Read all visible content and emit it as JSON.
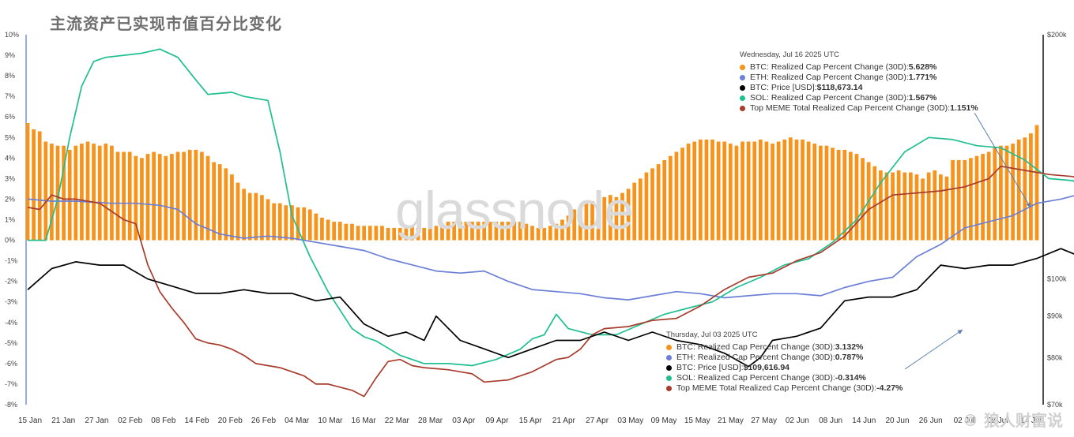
{
  "title": "主流资产已实现市值百分比变化",
  "watermark": "glassnode",
  "brand": "© 狼人财富说",
  "tooltip1": {
    "header": "Wednesday, Jul 16 2025 UTC",
    "rows": [
      {
        "label": "BTC: Realized Cap Percent Change (30D): ",
        "value": "5.628%",
        "color": "#f7931a"
      },
      {
        "label": "ETH: Realized Cap Percent Change (30D): ",
        "value": "1.771%",
        "color": "#6b7fd7"
      },
      {
        "label": "BTC: Price [USD]: ",
        "value": "$118,673.14",
        "color": "#000000"
      },
      {
        "label": "SOL: Realized Cap Percent Change (30D): ",
        "value": "1.567%",
        "color": "#1fbf8f"
      },
      {
        "label": "Top MEME Total Realized Cap Percent Change (30D): ",
        "value": "1.151%",
        "color": "#a83c2c"
      }
    ]
  },
  "tooltip2": {
    "header": "Thursday, Jul 03 2025 UTC",
    "rows": [
      {
        "label": "BTC: Realized Cap Percent Change (30D): ",
        "value": "3.132%",
        "color": "#f7931a"
      },
      {
        "label": "ETH: Realized Cap Percent Change (30D): ",
        "value": "0.787%",
        "color": "#6b7fd7"
      },
      {
        "label": "BTC: Price [USD]: ",
        "value": "$109,616.94",
        "color": "#000000"
      },
      {
        "label": "SOL: Realized Cap Percent Change (30D): ",
        "value": "-0.314%",
        "color": "#1fbf8f"
      },
      {
        "label": "Top MEME Total Realized Cap Percent Change (30D): ",
        "value": "-4.27%",
        "color": "#a83c2c"
      }
    ]
  },
  "chart_data": {
    "type": "bar+line",
    "x_ticks": [
      "15 Jan",
      "21 Jan",
      "27 Jan",
      "02 Feb",
      "08 Feb",
      "14 Feb",
      "20 Feb",
      "26 Feb",
      "04 Mar",
      "10 Mar",
      "16 Mar",
      "22 Mar",
      "28 Mar",
      "03 Apr",
      "09 Apr",
      "15 Apr",
      "21 Apr",
      "27 Apr",
      "03 May",
      "09 May",
      "15 May",
      "21 May",
      "27 May",
      "02 Jun",
      "08 Jun",
      "14 Jun",
      "20 Jun",
      "26 Jun",
      "02 Jul",
      "08 Jul",
      "14 Jul"
    ],
    "y_left_ticks": [
      "10%",
      "9%",
      "8%",
      "7%",
      "6%",
      "5%",
      "4%",
      "3%",
      "2%",
      "1%",
      "0%",
      "-1%",
      "-2%",
      "-3%",
      "-4%",
      "-5%",
      "-6%",
      "-7%",
      "-8%"
    ],
    "y_left_range": [
      -8,
      10
    ],
    "y_right_ticks": [
      {
        "label": "$200k",
        "value": 200000
      },
      {
        "label": "$100k",
        "value": 100000
      },
      {
        "label": "$90k",
        "value": 90000
      },
      {
        "label": "$80k",
        "value": 80000
      },
      {
        "label": "$70k",
        "value": 70000
      }
    ],
    "y_right_scale": "log",
    "y_right_range": [
      70000,
      200000
    ],
    "colors": {
      "btc": "#f7931a",
      "eth": "#6b7fd7",
      "price": "#000000",
      "sol": "#1fbf8f",
      "meme": "#a83c2c"
    },
    "btc_realized_cap_change": [
      5.7,
      5.4,
      5.3,
      4.8,
      4.7,
      4.6,
      4.6,
      4.4,
      4.6,
      4.7,
      4.8,
      4.7,
      4.6,
      4.7,
      4.6,
      4.3,
      4.3,
      4.3,
      4.1,
      4.0,
      4.2,
      4.3,
      4.2,
      4.1,
      4.2,
      4.3,
      4.3,
      4.4,
      4.4,
      4.3,
      4.1,
      3.8,
      3.7,
      3.5,
      3.2,
      2.8,
      2.5,
      2.3,
      2.3,
      2.2,
      2.0,
      1.8,
      1.8,
      1.7,
      1.7,
      1.6,
      1.6,
      1.5,
      1.3,
      1.1,
      1.0,
      0.9,
      0.9,
      0.8,
      0.8,
      0.7,
      0.7,
      0.7,
      0.7,
      0.7,
      0.6,
      0.6,
      0.6,
      0.6,
      0.7,
      0.6,
      0.6,
      0.7,
      0.7,
      0.8,
      0.9,
      0.9,
      0.9,
      0.9,
      0.9,
      0.9,
      0.9,
      0.9,
      0.9,
      0.9,
      0.9,
      0.9,
      0.9,
      0.8,
      0.7,
      0.6,
      0.6,
      0.7,
      0.8,
      1.0,
      1.2,
      1.5,
      1.6,
      1.8,
      1.9,
      2.0,
      2.1,
      2.2,
      2.1,
      2.3,
      2.5,
      2.8,
      3.0,
      3.3,
      3.5,
      3.7,
      3.9,
      4.1,
      4.3,
      4.5,
      4.7,
      4.8,
      4.9,
      4.9,
      4.9,
      4.8,
      4.8,
      4.7,
      4.6,
      4.8,
      4.8,
      4.8,
      4.9,
      4.8,
      4.7,
      4.8,
      4.9,
      5.0,
      4.9,
      4.9,
      4.8,
      4.7,
      4.6,
      4.6,
      4.5,
      4.4,
      4.4,
      4.3,
      4.2,
      4.0,
      3.8,
      3.6,
      3.4,
      3.3,
      3.3,
      3.4,
      3.3,
      3.3,
      3.2,
      3.0,
      3.3,
      3.4,
      3.2,
      3.1,
      3.9,
      3.9,
      3.9,
      4.0,
      4.1,
      4.2,
      4.3,
      4.5,
      4.6,
      4.6,
      4.7,
      4.9,
      5.0,
      5.2,
      5.6
    ],
    "eth_realized_cap_change": [
      [
        0,
        2.0
      ],
      [
        4,
        1.9
      ],
      [
        8,
        1.9
      ],
      [
        14,
        1.8
      ],
      [
        18,
        1.8
      ],
      [
        22,
        1.7
      ],
      [
        25,
        1.5
      ],
      [
        28,
        0.8
      ],
      [
        32,
        0.3
      ],
      [
        36,
        0.1
      ],
      [
        40,
        0.2
      ],
      [
        44,
        0.1
      ],
      [
        48,
        -0.1
      ],
      [
        52,
        -0.3
      ],
      [
        56,
        -0.5
      ],
      [
        60,
        -0.9
      ],
      [
        64,
        -1.2
      ],
      [
        68,
        -1.5
      ],
      [
        72,
        -1.6
      ],
      [
        76,
        -1.5
      ],
      [
        80,
        -2.0
      ],
      [
        84,
        -2.4
      ],
      [
        88,
        -2.5
      ],
      [
        92,
        -2.6
      ],
      [
        96,
        -2.8
      ],
      [
        100,
        -2.9
      ],
      [
        104,
        -2.7
      ],
      [
        108,
        -2.5
      ],
      [
        112,
        -2.6
      ],
      [
        116,
        -2.8
      ],
      [
        120,
        -2.7
      ],
      [
        124,
        -2.6
      ],
      [
        128,
        -2.6
      ],
      [
        132,
        -2.7
      ],
      [
        136,
        -2.3
      ],
      [
        140,
        -2.0
      ],
      [
        144,
        -1.8
      ],
      [
        148,
        -0.8
      ],
      [
        152,
        -0.2
      ],
      [
        156,
        0.6
      ],
      [
        160,
        0.9
      ],
      [
        164,
        1.2
      ],
      [
        168,
        1.8
      ],
      [
        172,
        2.0
      ],
      [
        176,
        2.3
      ],
      [
        180,
        2.5
      ],
      [
        184,
        2.8
      ],
      [
        188,
        2.9
      ],
      [
        192,
        3.0
      ],
      [
        196,
        2.5
      ],
      [
        200,
        1.8
      ],
      [
        204,
        1.5
      ],
      [
        208,
        1.5
      ],
      [
        212,
        1.3
      ],
      [
        216,
        1.0
      ],
      [
        220,
        0.5
      ],
      [
        224,
        0.4
      ],
      [
        228,
        0.6
      ],
      [
        232,
        1.3
      ],
      [
        234,
        1.77
      ]
    ],
    "btc_price_usd": [
      [
        0,
        97000
      ],
      [
        4,
        103000
      ],
      [
        8,
        105000
      ],
      [
        12,
        104000
      ],
      [
        16,
        104000
      ],
      [
        20,
        100000
      ],
      [
        24,
        98000
      ],
      [
        28,
        96000
      ],
      [
        32,
        96000
      ],
      [
        36,
        97000
      ],
      [
        40,
        96000
      ],
      [
        44,
        96000
      ],
      [
        48,
        94000
      ],
      [
        52,
        95000
      ],
      [
        56,
        88000
      ],
      [
        60,
        85000
      ],
      [
        63,
        86000
      ],
      [
        66,
        84000
      ],
      [
        68,
        90000
      ],
      [
        72,
        84000
      ],
      [
        76,
        82000
      ],
      [
        80,
        80000
      ],
      [
        84,
        82000
      ],
      [
        88,
        84000
      ],
      [
        92,
        84000
      ],
      [
        96,
        86000
      ],
      [
        100,
        84000
      ],
      [
        104,
        86000
      ],
      [
        108,
        84000
      ],
      [
        112,
        83000
      ],
      [
        116,
        81000
      ],
      [
        120,
        78000
      ],
      [
        122,
        80000
      ],
      [
        124,
        84000
      ],
      [
        128,
        85000
      ],
      [
        132,
        87000
      ],
      [
        136,
        94000
      ],
      [
        140,
        95000
      ],
      [
        144,
        95000
      ],
      [
        148,
        97000
      ],
      [
        152,
        104000
      ],
      [
        156,
        103000
      ],
      [
        160,
        104000
      ],
      [
        164,
        104000
      ],
      [
        168,
        106000
      ],
      [
        172,
        109000
      ],
      [
        176,
        106000
      ],
      [
        180,
        108000
      ],
      [
        184,
        106000
      ],
      [
        188,
        104000
      ],
      [
        192,
        105000
      ],
      [
        196,
        108000
      ],
      [
        200,
        105000
      ],
      [
        204,
        105000
      ],
      [
        208,
        103000
      ],
      [
        212,
        101000
      ],
      [
        216,
        105000
      ],
      [
        220,
        106000
      ],
      [
        224,
        107000
      ],
      [
        228,
        108000
      ],
      [
        230,
        115000
      ],
      [
        232,
        118000
      ],
      [
        234,
        118673
      ]
    ],
    "sol_realized_cap_change": [
      [
        0,
        0.0
      ],
      [
        3,
        0.0
      ],
      [
        5,
        2.0
      ],
      [
        7,
        5.0
      ],
      [
        9,
        7.5
      ],
      [
        11,
        8.7
      ],
      [
        13,
        8.9
      ],
      [
        16,
        9.0
      ],
      [
        19,
        9.1
      ],
      [
        22,
        9.3
      ],
      [
        25,
        8.9
      ],
      [
        28,
        7.8
      ],
      [
        30,
        7.1
      ],
      [
        34,
        7.2
      ],
      [
        36,
        7.0
      ],
      [
        40,
        6.8
      ],
      [
        42,
        4.3
      ],
      [
        44,
        1.2
      ],
      [
        47,
        -0.8
      ],
      [
        50,
        -2.5
      ],
      [
        54,
        -4.3
      ],
      [
        56,
        -4.7
      ],
      [
        58,
        -4.9
      ],
      [
        62,
        -5.6
      ],
      [
        66,
        -6.0
      ],
      [
        70,
        -6.0
      ],
      [
        74,
        -6.1
      ],
      [
        78,
        -5.8
      ],
      [
        82,
        -5.3
      ],
      [
        84,
        -4.8
      ],
      [
        86,
        -4.6
      ],
      [
        88,
        -3.6
      ],
      [
        90,
        -4.3
      ],
      [
        94,
        -4.6
      ],
      [
        98,
        -4.6
      ],
      [
        102,
        -4.1
      ],
      [
        106,
        -3.6
      ],
      [
        110,
        -3.3
      ],
      [
        114,
        -3.0
      ],
      [
        118,
        -2.3
      ],
      [
        122,
        -1.8
      ],
      [
        126,
        -1.2
      ],
      [
        130,
        -0.9
      ],
      [
        134,
        -0.1
      ],
      [
        138,
        1.0
      ],
      [
        142,
        2.8
      ],
      [
        146,
        4.3
      ],
      [
        150,
        5.0
      ],
      [
        154,
        4.9
      ],
      [
        158,
        4.6
      ],
      [
        162,
        4.5
      ],
      [
        166,
        3.9
      ],
      [
        170,
        3.0
      ],
      [
        174,
        2.9
      ],
      [
        178,
        2.1
      ],
      [
        182,
        1.2
      ],
      [
        186,
        -0.4
      ],
      [
        188,
        -0.6
      ],
      [
        192,
        -1.8
      ],
      [
        196,
        -2.4
      ],
      [
        198,
        -0.8
      ],
      [
        202,
        -0.5
      ],
      [
        206,
        -0.4
      ],
      [
        210,
        0.0
      ],
      [
        214,
        0.4
      ],
      [
        218,
        0.6
      ],
      [
        222,
        0.9
      ],
      [
        226,
        1.1
      ],
      [
        230,
        1.3
      ],
      [
        234,
        1.567
      ]
    ],
    "meme_realized_cap_change": [
      [
        0,
        1.6
      ],
      [
        2,
        1.5
      ],
      [
        4,
        2.2
      ],
      [
        6,
        2.0
      ],
      [
        8,
        2.0
      ],
      [
        12,
        1.8
      ],
      [
        14,
        1.4
      ],
      [
        16,
        1.0
      ],
      [
        18,
        0.8
      ],
      [
        20,
        -1.2
      ],
      [
        22,
        -2.5
      ],
      [
        24,
        -3.3
      ],
      [
        26,
        -4.0
      ],
      [
        28,
        -4.8
      ],
      [
        30,
        -5.0
      ],
      [
        32,
        -5.1
      ],
      [
        34,
        -5.3
      ],
      [
        36,
        -5.6
      ],
      [
        38,
        -6.0
      ],
      [
        40,
        -6.1
      ],
      [
        42,
        -6.2
      ],
      [
        46,
        -6.6
      ],
      [
        48,
        -7.0
      ],
      [
        50,
        -7.0
      ],
      [
        54,
        -7.3
      ],
      [
        56,
        -7.6
      ],
      [
        58,
        -6.7
      ],
      [
        60,
        -5.9
      ],
      [
        62,
        -5.8
      ],
      [
        64,
        -6.1
      ],
      [
        66,
        -6.2
      ],
      [
        70,
        -6.3
      ],
      [
        72,
        -6.4
      ],
      [
        74,
        -6.5
      ],
      [
        76,
        -6.9
      ],
      [
        80,
        -6.8
      ],
      [
        84,
        -6.4
      ],
      [
        88,
        -5.8
      ],
      [
        90,
        -5.7
      ],
      [
        92,
        -5.3
      ],
      [
        94,
        -4.6
      ],
      [
        96,
        -4.3
      ],
      [
        100,
        -4.2
      ],
      [
        104,
        -3.9
      ],
      [
        108,
        -3.8
      ],
      [
        112,
        -3.2
      ],
      [
        116,
        -2.4
      ],
      [
        120,
        -1.8
      ],
      [
        124,
        -1.6
      ],
      [
        128,
        -1.0
      ],
      [
        132,
        -0.6
      ],
      [
        136,
        0.2
      ],
      [
        140,
        1.5
      ],
      [
        144,
        2.2
      ],
      [
        148,
        2.3
      ],
      [
        152,
        2.4
      ],
      [
        156,
        2.6
      ],
      [
        160,
        3.0
      ],
      [
        162,
        3.6
      ],
      [
        166,
        3.4
      ],
      [
        170,
        3.2
      ],
      [
        174,
        3.1
      ],
      [
        176,
        2.8
      ],
      [
        178,
        2.6
      ],
      [
        180,
        2.1
      ],
      [
        182,
        0.9
      ],
      [
        184,
        -1.8
      ],
      [
        188,
        -2.8
      ],
      [
        192,
        -3.5
      ],
      [
        196,
        -4.0
      ],
      [
        200,
        -4.2
      ],
      [
        204,
        -4.4
      ],
      [
        208,
        -4.3
      ],
      [
        212,
        -4.0
      ],
      [
        216,
        -3.9
      ],
      [
        220,
        -3.4
      ],
      [
        224,
        -3.2
      ],
      [
        228,
        -2.9
      ],
      [
        232,
        -1.5
      ],
      [
        234,
        1.151
      ]
    ]
  }
}
